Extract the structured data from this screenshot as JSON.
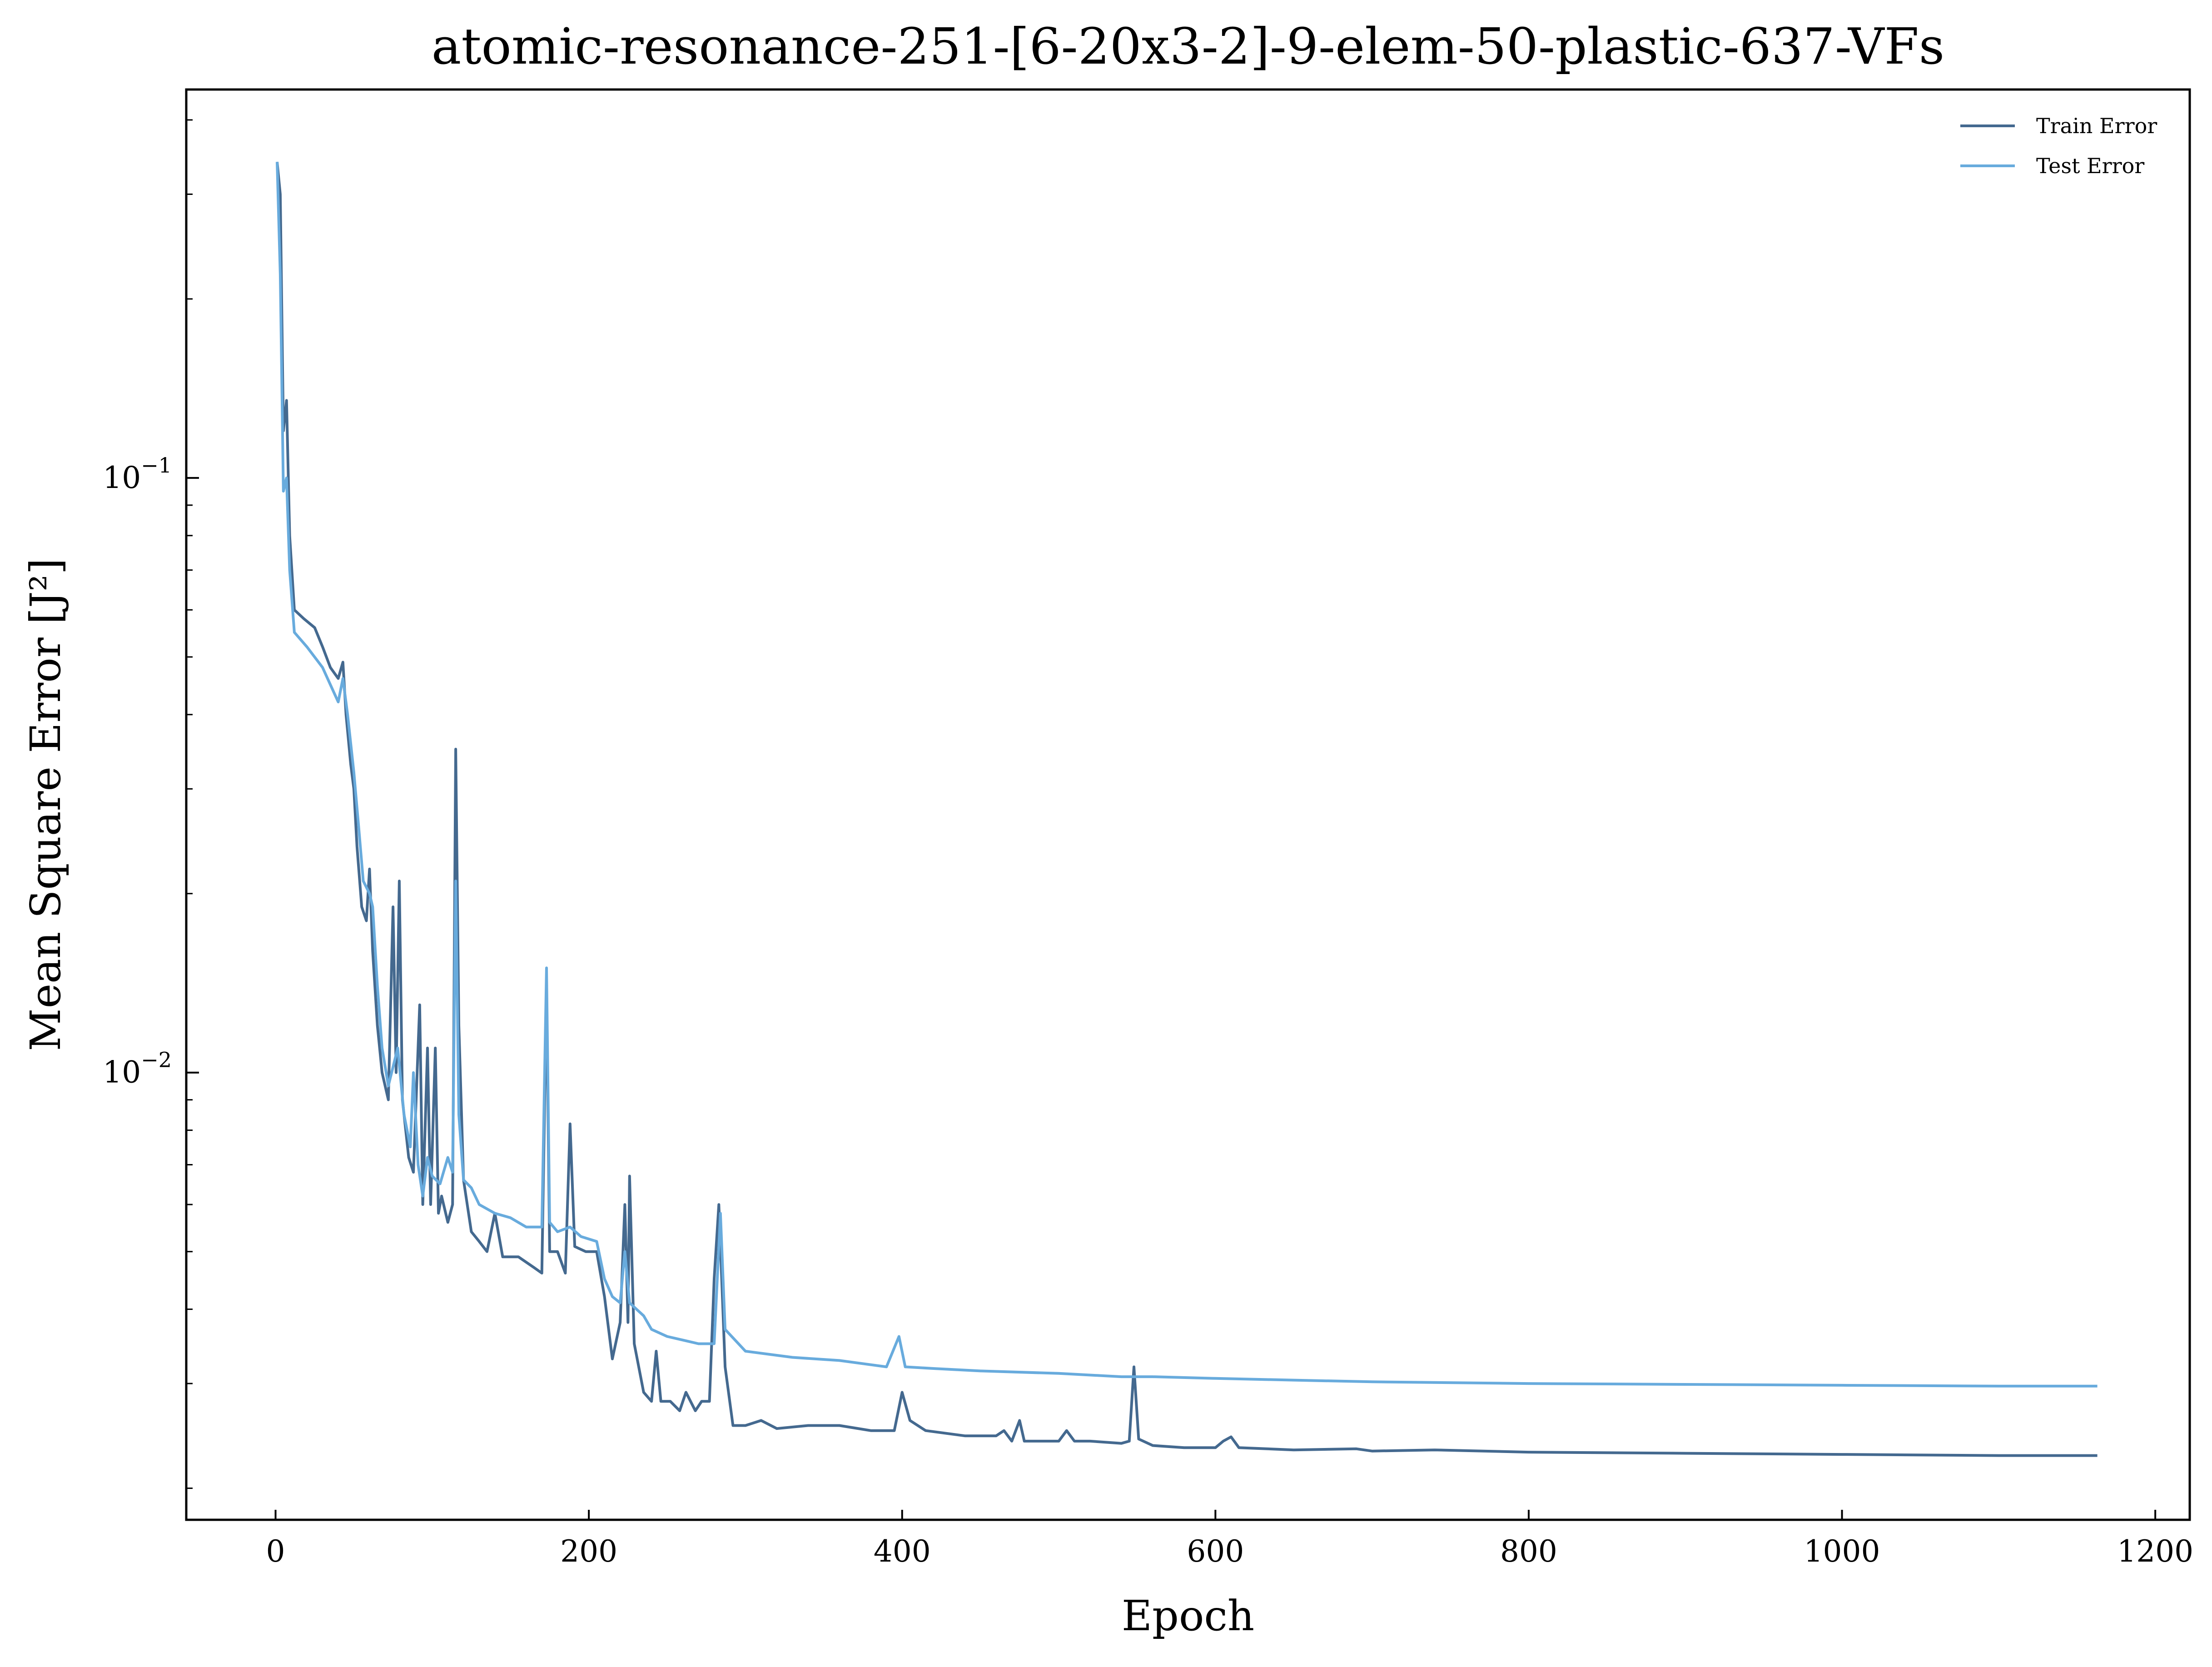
{
  "chart_data": {
    "type": "line",
    "title": "atomic-resonance-251-[6-20x3-2]-9-elem-50-plastic-637-VFs",
    "xlabel": "Epoch",
    "ylabel": "Mean Square Error [J²]",
    "yscale": "log",
    "xlim": [
      -57,
      1222
    ],
    "ylim": [
      0.00177,
      0.45
    ],
    "x_ticks": [
      0,
      200,
      400,
      600,
      800,
      1000,
      1200
    ],
    "y_ticks": [
      {
        "value": 0.1,
        "base": "10",
        "exp": "−1"
      },
      {
        "value": 0.01,
        "base": "10",
        "exp": "−2"
      }
    ],
    "grid": false,
    "legend_position": "top-right",
    "colors": {
      "train": "#44698f",
      "test": "#68abdd"
    },
    "series": [
      {
        "name": "Train Error",
        "color": "#44698f",
        "points": [
          [
            1,
            0.34
          ],
          [
            3,
            0.3
          ],
          [
            5,
            0.12
          ],
          [
            7,
            0.135
          ],
          [
            9,
            0.08
          ],
          [
            12,
            0.06
          ],
          [
            18,
            0.058
          ],
          [
            25,
            0.056
          ],
          [
            30,
            0.052
          ],
          [
            35,
            0.048
          ],
          [
            40,
            0.046
          ],
          [
            43,
            0.049
          ],
          [
            45,
            0.04
          ],
          [
            48,
            0.033
          ],
          [
            50,
            0.03
          ],
          [
            52,
            0.024
          ],
          [
            55,
            0.019
          ],
          [
            58,
            0.018
          ],
          [
            60,
            0.022
          ],
          [
            62,
            0.016
          ],
          [
            65,
            0.012
          ],
          [
            68,
            0.01
          ],
          [
            72,
            0.009
          ],
          [
            75,
            0.019
          ],
          [
            77,
            0.01
          ],
          [
            79,
            0.021
          ],
          [
            81,
            0.009
          ],
          [
            85,
            0.0072
          ],
          [
            88,
            0.0068
          ],
          [
            92,
            0.013
          ],
          [
            94,
            0.006
          ],
          [
            97,
            0.011
          ],
          [
            99,
            0.006
          ],
          [
            102,
            0.011
          ],
          [
            104,
            0.0058
          ],
          [
            106,
            0.0062
          ],
          [
            110,
            0.0056
          ],
          [
            113,
            0.006
          ],
          [
            115,
            0.035
          ],
          [
            117,
            0.012
          ],
          [
            120,
            0.0066
          ],
          [
            125,
            0.0054
          ],
          [
            130,
            0.0052
          ],
          [
            135,
            0.005
          ],
          [
            140,
            0.0058
          ],
          [
            145,
            0.0049
          ],
          [
            155,
            0.0049
          ],
          [
            165,
            0.0047
          ],
          [
            170,
            0.0046
          ],
          [
            173,
            0.014
          ],
          [
            175,
            0.005
          ],
          [
            180,
            0.005
          ],
          [
            185,
            0.0046
          ],
          [
            188,
            0.0082
          ],
          [
            191,
            0.0051
          ],
          [
            198,
            0.005
          ],
          [
            205,
            0.005
          ],
          [
            210,
            0.0042
          ],
          [
            215,
            0.0033
          ],
          [
            220,
            0.0038
          ],
          [
            223,
            0.006
          ],
          [
            225,
            0.0038
          ],
          [
            226,
            0.0067
          ],
          [
            229,
            0.0035
          ],
          [
            235,
            0.0029
          ],
          [
            240,
            0.0028
          ],
          [
            243,
            0.0034
          ],
          [
            246,
            0.0028
          ],
          [
            252,
            0.0028
          ],
          [
            258,
            0.0027
          ],
          [
            262,
            0.0029
          ],
          [
            268,
            0.0027
          ],
          [
            272,
            0.0028
          ],
          [
            277,
            0.0028
          ],
          [
            280,
            0.0045
          ],
          [
            283,
            0.006
          ],
          [
            287,
            0.0032
          ],
          [
            292,
            0.00255
          ],
          [
            300,
            0.00255
          ],
          [
            310,
            0.0026
          ],
          [
            320,
            0.00252
          ],
          [
            340,
            0.00255
          ],
          [
            360,
            0.00255
          ],
          [
            380,
            0.0025
          ],
          [
            395,
            0.0025
          ],
          [
            400,
            0.0029
          ],
          [
            405,
            0.0026
          ],
          [
            415,
            0.0025
          ],
          [
            440,
            0.00245
          ],
          [
            460,
            0.00245
          ],
          [
            465,
            0.0025
          ],
          [
            470,
            0.0024
          ],
          [
            475,
            0.0026
          ],
          [
            478,
            0.0024
          ],
          [
            490,
            0.0024
          ],
          [
            500,
            0.0024
          ],
          [
            505,
            0.0025
          ],
          [
            510,
            0.0024
          ],
          [
            520,
            0.0024
          ],
          [
            540,
            0.00238
          ],
          [
            545,
            0.0024
          ],
          [
            548,
            0.0032
          ],
          [
            551,
            0.00242
          ],
          [
            560,
            0.00236
          ],
          [
            580,
            0.00234
          ],
          [
            600,
            0.00234
          ],
          [
            605,
            0.0024
          ],
          [
            610,
            0.00244
          ],
          [
            615,
            0.00234
          ],
          [
            650,
            0.00232
          ],
          [
            690,
            0.00233
          ],
          [
            700,
            0.00231
          ],
          [
            740,
            0.00232
          ],
          [
            800,
            0.0023
          ],
          [
            900,
            0.00229
          ],
          [
            1000,
            0.00228
          ],
          [
            1100,
            0.00227
          ],
          [
            1163,
            0.00227
          ]
        ]
      },
      {
        "name": "Test Error",
        "color": "#68abdd",
        "points": [
          [
            1,
            0.34
          ],
          [
            3,
            0.22
          ],
          [
            5,
            0.095
          ],
          [
            7,
            0.1
          ],
          [
            9,
            0.07
          ],
          [
            12,
            0.055
          ],
          [
            20,
            0.052
          ],
          [
            30,
            0.048
          ],
          [
            40,
            0.042
          ],
          [
            43,
            0.046
          ],
          [
            46,
            0.04
          ],
          [
            50,
            0.032
          ],
          [
            53,
            0.026
          ],
          [
            56,
            0.021
          ],
          [
            60,
            0.02
          ],
          [
            62,
            0.019
          ],
          [
            65,
            0.014
          ],
          [
            68,
            0.011
          ],
          [
            72,
            0.0095
          ],
          [
            78,
            0.011
          ],
          [
            82,
            0.0085
          ],
          [
            86,
            0.0075
          ],
          [
            88,
            0.01
          ],
          [
            91,
            0.007
          ],
          [
            94,
            0.0062
          ],
          [
            97,
            0.0072
          ],
          [
            100,
            0.0067
          ],
          [
            105,
            0.0065
          ],
          [
            110,
            0.0072
          ],
          [
            113,
            0.0068
          ],
          [
            115,
            0.021
          ],
          [
            117,
            0.0085
          ],
          [
            120,
            0.0066
          ],
          [
            125,
            0.0064
          ],
          [
            130,
            0.006
          ],
          [
            140,
            0.0058
          ],
          [
            150,
            0.0057
          ],
          [
            160,
            0.0055
          ],
          [
            170,
            0.0055
          ],
          [
            173,
            0.015
          ],
          [
            175,
            0.0056
          ],
          [
            180,
            0.0054
          ],
          [
            188,
            0.0055
          ],
          [
            195,
            0.0053
          ],
          [
            205,
            0.0052
          ],
          [
            210,
            0.0045
          ],
          [
            215,
            0.0042
          ],
          [
            220,
            0.0041
          ],
          [
            223,
            0.005
          ],
          [
            226,
            0.0041
          ],
          [
            235,
            0.0039
          ],
          [
            240,
            0.0037
          ],
          [
            250,
            0.0036
          ],
          [
            260,
            0.00355
          ],
          [
            270,
            0.0035
          ],
          [
            280,
            0.0035
          ],
          [
            284,
            0.0058
          ],
          [
            287,
            0.0037
          ],
          [
            300,
            0.0034
          ],
          [
            330,
            0.00332
          ],
          [
            360,
            0.00328
          ],
          [
            390,
            0.0032
          ],
          [
            398,
            0.0036
          ],
          [
            402,
            0.0032
          ],
          [
            420,
            0.00318
          ],
          [
            450,
            0.00315
          ],
          [
            500,
            0.00312
          ],
          [
            540,
            0.00308
          ],
          [
            560,
            0.00308
          ],
          [
            600,
            0.00306
          ],
          [
            650,
            0.00304
          ],
          [
            700,
            0.00302
          ],
          [
            800,
            0.003
          ],
          [
            900,
            0.00299
          ],
          [
            1000,
            0.00298
          ],
          [
            1100,
            0.00297
          ],
          [
            1163,
            0.00297
          ]
        ]
      }
    ]
  }
}
